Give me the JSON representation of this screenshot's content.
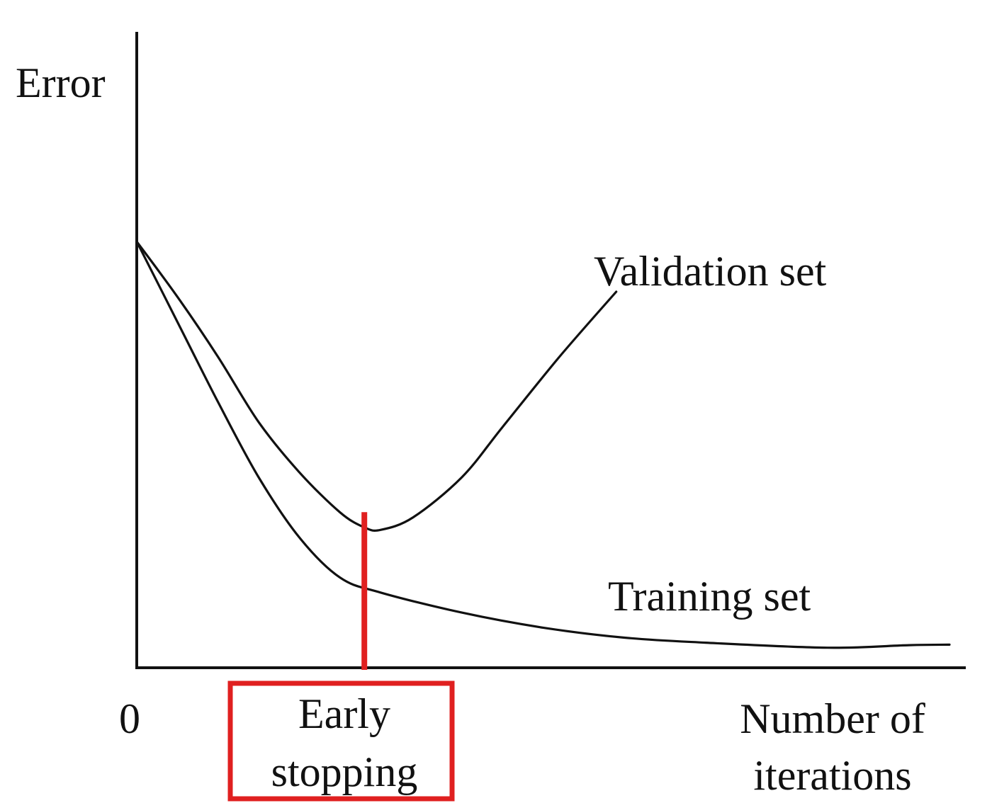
{
  "chart_data": {
    "type": "line",
    "title": "",
    "ylabel": "Error",
    "xlabel": "Number of iterations",
    "xlabel_lines": [
      "Number of",
      "iterations"
    ],
    "x_origin_label": "0",
    "xlim": [
      0,
      100
    ],
    "ylim": [
      0,
      100
    ],
    "grid": false,
    "legend": "none",
    "series": [
      {
        "name": "Validation set",
        "color": "#111111",
        "points": [
          [
            0,
            85
          ],
          [
            5,
            74
          ],
          [
            10,
            62
          ],
          [
            15,
            49
          ],
          [
            20,
            39
          ],
          [
            25,
            31
          ],
          [
            28,
            28
          ],
          [
            30,
            27.5
          ],
          [
            34,
            30
          ],
          [
            40,
            38
          ],
          [
            45,
            48
          ],
          [
            52,
            62
          ],
          [
            59,
            75
          ]
        ]
      },
      {
        "name": "Training set",
        "color": "#111111",
        "points": [
          [
            0,
            85
          ],
          [
            5,
            69
          ],
          [
            10,
            53
          ],
          [
            15,
            38
          ],
          [
            20,
            26
          ],
          [
            25,
            18
          ],
          [
            30,
            15
          ],
          [
            40,
            11
          ],
          [
            50,
            8
          ],
          [
            60,
            6
          ],
          [
            70,
            5
          ],
          [
            85,
            4
          ],
          [
            95,
            4.5
          ],
          [
            100,
            4.6
          ]
        ]
      }
    ],
    "annotations": [
      {
        "type": "vertical-line",
        "x": 28,
        "color": "#e02020",
        "label_lines": [
          "Early",
          "stopping"
        ],
        "box_color": "#e02020"
      }
    ]
  }
}
